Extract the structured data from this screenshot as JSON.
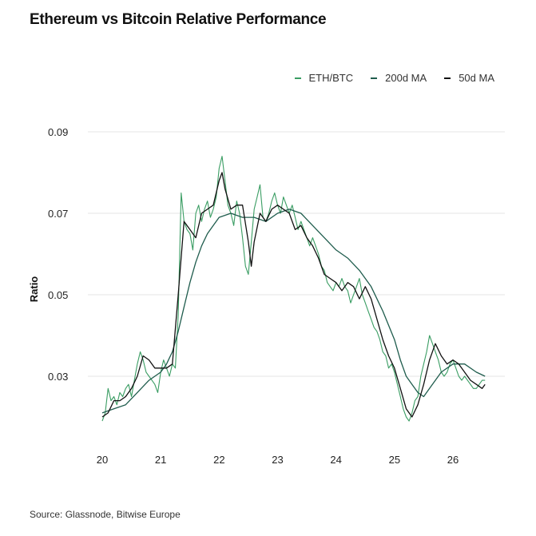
{
  "chart_data": {
    "type": "line",
    "title": "Ethereum vs Bitcoin Relative Performance",
    "ylabel": "Ratio",
    "xlabel": "",
    "source": "Source: Glassnode, Bitwise Europe",
    "xlim": [
      20,
      26.6
    ],
    "ylim": [
      0.015,
      0.092
    ],
    "x_ticks": [
      "20",
      "21",
      "22",
      "23",
      "24",
      "25",
      "26"
    ],
    "x_tick_values": [
      20,
      21,
      22,
      23,
      24,
      25,
      26
    ],
    "y_ticks": [
      "0.09",
      "0.07",
      "0.05",
      "0.03"
    ],
    "y_tick_values": [
      0.09,
      0.07,
      0.05,
      0.03
    ],
    "grid": true,
    "legend_position": "top-right",
    "colors": {
      "eth_btc": "#3a9d63",
      "ma200": "#1f5c4d",
      "ma50": "#111111"
    },
    "series": [
      {
        "name": "ETH/BTC",
        "x": [
          20.0,
          20.05,
          20.1,
          20.15,
          20.2,
          20.25,
          20.3,
          20.35,
          20.4,
          20.45,
          20.5,
          20.55,
          20.6,
          20.65,
          20.7,
          20.75,
          20.8,
          20.85,
          20.9,
          20.95,
          21.0,
          21.05,
          21.1,
          21.15,
          21.2,
          21.25,
          21.3,
          21.35,
          21.4,
          21.45,
          21.5,
          21.55,
          21.6,
          21.65,
          21.7,
          21.75,
          21.8,
          21.85,
          21.9,
          21.95,
          22.0,
          22.05,
          22.1,
          22.15,
          22.2,
          22.25,
          22.3,
          22.35,
          22.4,
          22.45,
          22.5,
          22.55,
          22.6,
          22.65,
          22.7,
          22.75,
          22.8,
          22.85,
          22.9,
          22.95,
          23.0,
          23.05,
          23.1,
          23.15,
          23.2,
          23.25,
          23.3,
          23.35,
          23.4,
          23.45,
          23.5,
          23.55,
          23.6,
          23.65,
          23.7,
          23.75,
          23.8,
          23.85,
          23.9,
          23.95,
          24.0,
          24.05,
          24.1,
          24.15,
          24.2,
          24.25,
          24.3,
          24.35,
          24.4,
          24.45,
          24.5,
          24.55,
          24.6,
          24.65,
          24.7,
          24.75,
          24.8,
          24.85,
          24.9,
          24.95,
          25.0,
          25.05,
          25.1,
          25.15,
          25.2,
          25.25,
          25.3,
          25.35,
          25.4,
          25.45,
          25.5,
          25.55,
          25.6,
          25.65,
          25.7,
          25.75,
          25.8,
          25.85,
          25.9,
          25.95,
          26.0,
          26.05,
          26.1,
          26.15,
          26.2,
          26.25,
          26.3,
          26.35,
          26.4,
          26.45,
          26.5,
          26.55
        ],
        "values": [
          0.019,
          0.021,
          0.027,
          0.024,
          0.025,
          0.023,
          0.026,
          0.025,
          0.027,
          0.028,
          0.025,
          0.029,
          0.033,
          0.036,
          0.034,
          0.031,
          0.03,
          0.029,
          0.028,
          0.026,
          0.031,
          0.034,
          0.032,
          0.03,
          0.033,
          0.032,
          0.045,
          0.075,
          0.068,
          0.066,
          0.065,
          0.061,
          0.07,
          0.072,
          0.068,
          0.071,
          0.073,
          0.069,
          0.071,
          0.074,
          0.081,
          0.084,
          0.078,
          0.072,
          0.07,
          0.067,
          0.073,
          0.07,
          0.064,
          0.057,
          0.055,
          0.063,
          0.071,
          0.074,
          0.077,
          0.069,
          0.068,
          0.07,
          0.073,
          0.075,
          0.072,
          0.07,
          0.074,
          0.072,
          0.07,
          0.072,
          0.069,
          0.066,
          0.068,
          0.066,
          0.064,
          0.062,
          0.064,
          0.062,
          0.06,
          0.057,
          0.056,
          0.053,
          0.052,
          0.051,
          0.053,
          0.052,
          0.054,
          0.052,
          0.051,
          0.048,
          0.05,
          0.052,
          0.054,
          0.05,
          0.048,
          0.046,
          0.044,
          0.042,
          0.041,
          0.039,
          0.036,
          0.035,
          0.032,
          0.033,
          0.031,
          0.028,
          0.025,
          0.022,
          0.02,
          0.019,
          0.021,
          0.024,
          0.025,
          0.03,
          0.033,
          0.036,
          0.04,
          0.038,
          0.036,
          0.034,
          0.031,
          0.03,
          0.031,
          0.033,
          0.034,
          0.032,
          0.03,
          0.029,
          0.03,
          0.029,
          0.028,
          0.027,
          0.027,
          0.028,
          0.029,
          0.029
        ]
      },
      {
        "name": "200d MA",
        "x": [
          20.0,
          20.2,
          20.4,
          20.6,
          20.8,
          21.0,
          21.1,
          21.2,
          21.3,
          21.4,
          21.5,
          21.6,
          21.7,
          21.8,
          21.9,
          22.0,
          22.2,
          22.4,
          22.6,
          22.8,
          23.0,
          23.2,
          23.4,
          23.6,
          23.8,
          24.0,
          24.2,
          24.4,
          24.6,
          24.8,
          25.0,
          25.1,
          25.2,
          25.3,
          25.4,
          25.5,
          25.6,
          25.8,
          26.0,
          26.2,
          26.4,
          26.55
        ],
        "values": [
          0.021,
          0.022,
          0.023,
          0.026,
          0.029,
          0.031,
          0.033,
          0.036,
          0.041,
          0.047,
          0.053,
          0.058,
          0.062,
          0.065,
          0.067,
          0.069,
          0.07,
          0.069,
          0.069,
          0.068,
          0.07,
          0.071,
          0.07,
          0.067,
          0.064,
          0.061,
          0.059,
          0.056,
          0.052,
          0.046,
          0.039,
          0.034,
          0.03,
          0.028,
          0.026,
          0.025,
          0.027,
          0.031,
          0.033,
          0.033,
          0.031,
          0.03
        ]
      },
      {
        "name": "50d MA",
        "x": [
          20.0,
          20.1,
          20.2,
          20.3,
          20.4,
          20.5,
          20.6,
          20.7,
          20.8,
          20.9,
          21.0,
          21.1,
          21.2,
          21.3,
          21.4,
          21.5,
          21.6,
          21.7,
          21.8,
          21.9,
          22.0,
          22.05,
          22.1,
          22.2,
          22.3,
          22.4,
          22.5,
          22.55,
          22.6,
          22.7,
          22.8,
          22.9,
          23.0,
          23.1,
          23.2,
          23.3,
          23.4,
          23.5,
          23.6,
          23.7,
          23.8,
          23.9,
          24.0,
          24.1,
          24.2,
          24.3,
          24.4,
          24.5,
          24.6,
          24.7,
          24.8,
          24.9,
          25.0,
          25.1,
          25.2,
          25.3,
          25.4,
          25.5,
          25.6,
          25.7,
          25.8,
          25.9,
          26.0,
          26.1,
          26.2,
          26.3,
          26.4,
          26.5,
          26.55
        ],
        "values": [
          0.02,
          0.021,
          0.024,
          0.024,
          0.025,
          0.027,
          0.03,
          0.035,
          0.034,
          0.032,
          0.032,
          0.032,
          0.033,
          0.05,
          0.068,
          0.066,
          0.064,
          0.07,
          0.071,
          0.072,
          0.078,
          0.08,
          0.076,
          0.071,
          0.072,
          0.072,
          0.063,
          0.057,
          0.063,
          0.07,
          0.068,
          0.071,
          0.072,
          0.071,
          0.07,
          0.066,
          0.067,
          0.064,
          0.062,
          0.059,
          0.055,
          0.054,
          0.053,
          0.051,
          0.053,
          0.052,
          0.049,
          0.052,
          0.049,
          0.044,
          0.039,
          0.035,
          0.032,
          0.027,
          0.022,
          0.02,
          0.023,
          0.028,
          0.034,
          0.038,
          0.035,
          0.033,
          0.034,
          0.033,
          0.031,
          0.029,
          0.028,
          0.027,
          0.028
        ]
      }
    ]
  }
}
